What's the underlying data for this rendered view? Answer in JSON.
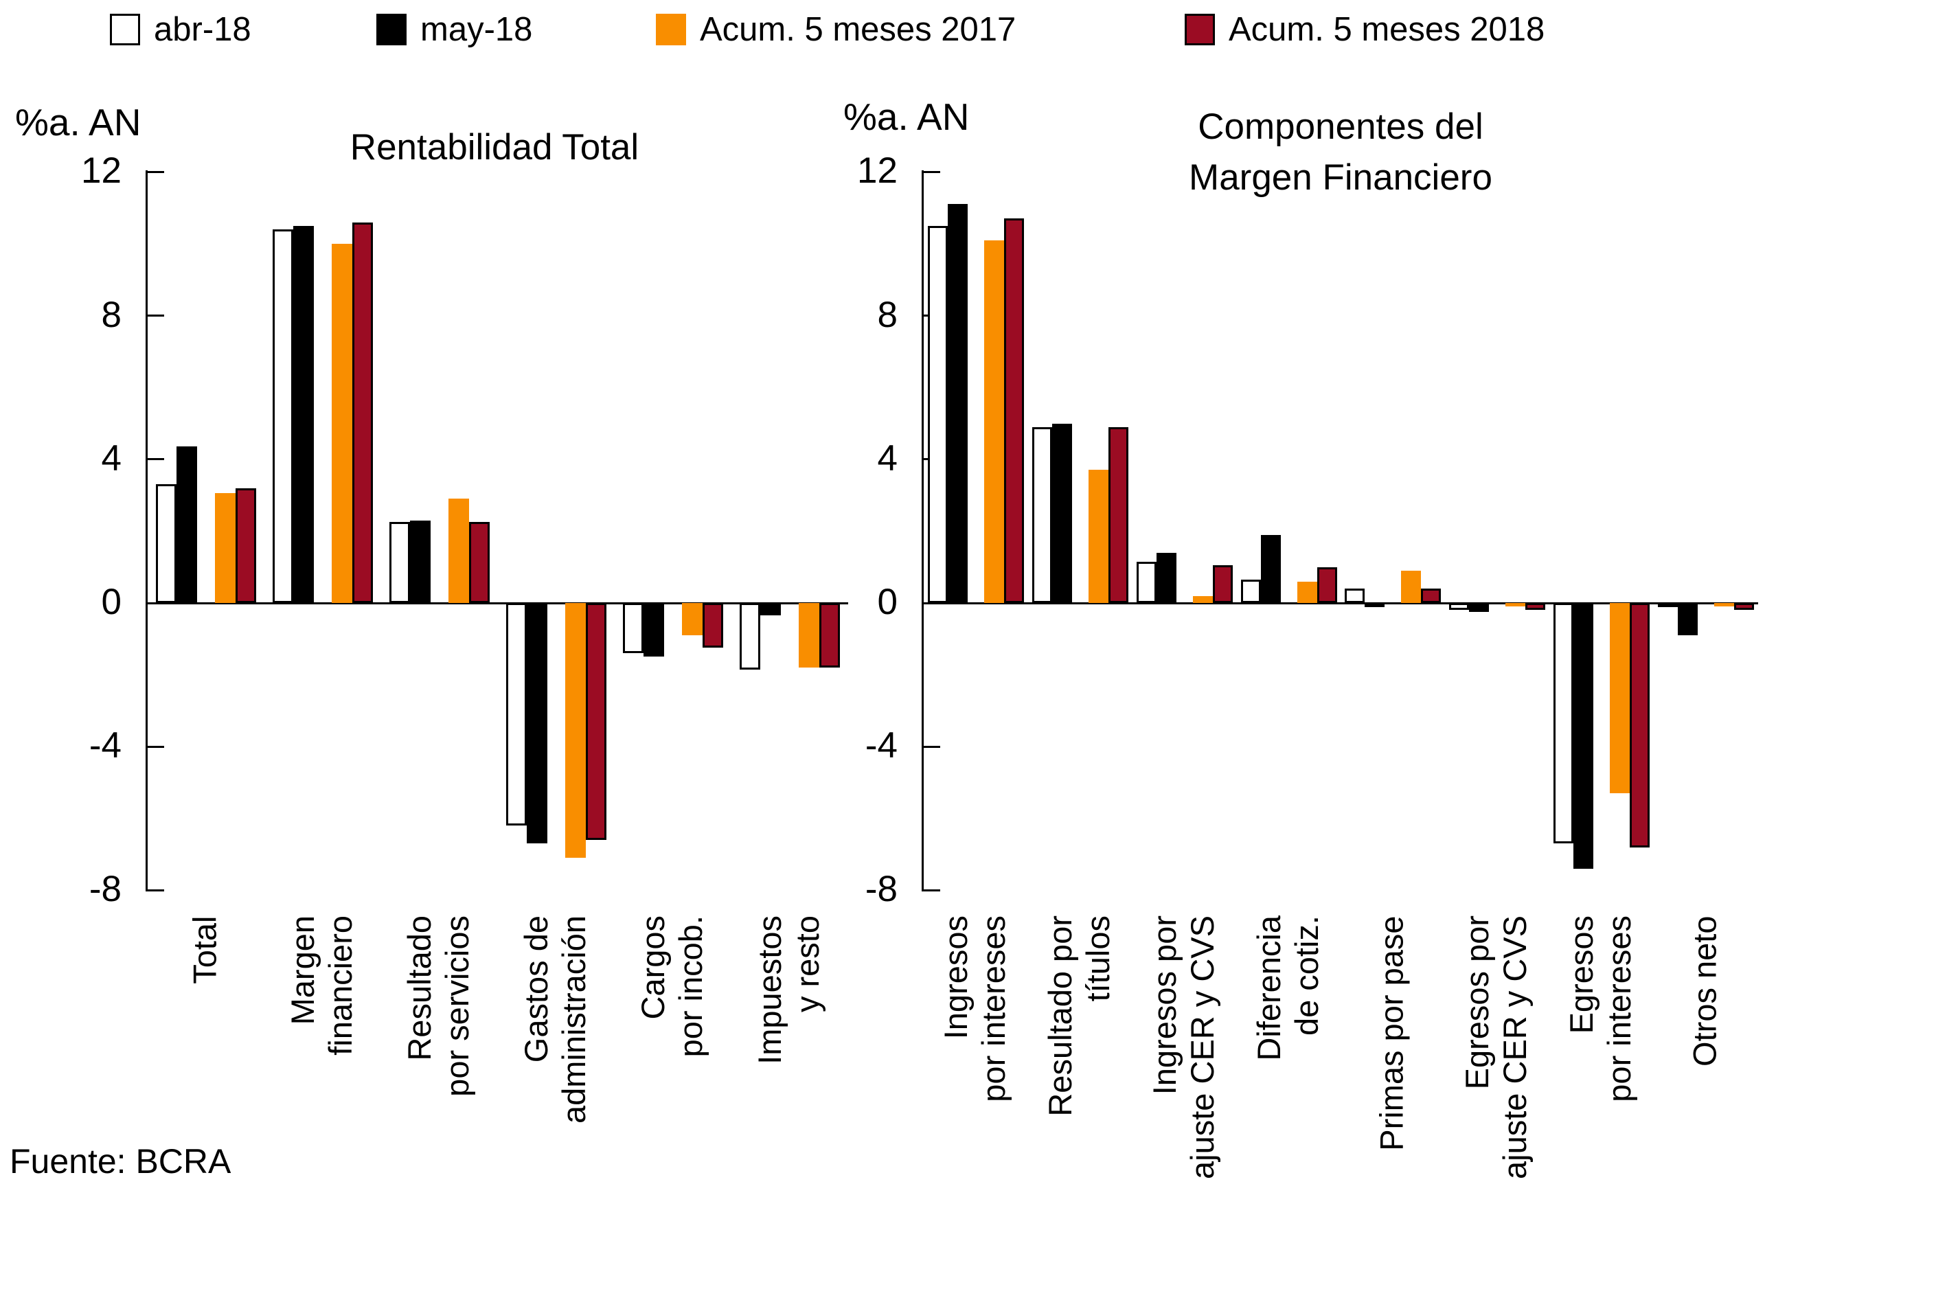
{
  "source_label": "Fuente: BCRA",
  "legend": {
    "items": [
      {
        "label": "abr-18",
        "fill": "#FFFFFF",
        "border": "#000000"
      },
      {
        "label": "may-18",
        "fill": "#000000",
        "border": "#000000"
      },
      {
        "label": "Acum. 5 meses 2017",
        "fill": "#F98E00",
        "border": "none"
      },
      {
        "label": "Acum. 5 meses 2018",
        "fill": "#9B0C23",
        "border": "#000000"
      }
    ]
  },
  "chart_data": [
    {
      "type": "bar",
      "title": "Rentabilidad Total",
      "title_lines": [
        "Rentabilidad Total"
      ],
      "axis_unit_label": "%a. AN",
      "ylabel": "%a. AN",
      "xlabel": "",
      "ylim": [
        -8,
        12
      ],
      "yticks": [
        12,
        8,
        4,
        0,
        -4,
        -8
      ],
      "grid": false,
      "legend_position": "top",
      "categories": [
        "Total",
        "Margen financiero",
        "Resultado por servicios",
        "Gastos de administración",
        "Cargos por incob.",
        "Impuestos y resto"
      ],
      "category_label_lines": [
        [
          "Total"
        ],
        [
          "Margen",
          "financiero"
        ],
        [
          "Resultado",
          "por servicios"
        ],
        [
          "Gastos de",
          "administración"
        ],
        [
          "Cargos",
          "por incob."
        ],
        [
          "Impuestos",
          "y resto"
        ]
      ],
      "series": [
        {
          "name": "abr-18",
          "values": [
            3.3,
            10.4,
            2.25,
            -6.2,
            -1.4,
            -1.85
          ]
        },
        {
          "name": "may-18",
          "values": [
            4.35,
            10.5,
            2.3,
            -6.7,
            -1.5,
            -0.35
          ]
        },
        {
          "name": "Acum. 5 meses 2017",
          "values": [
            3.05,
            10.0,
            2.9,
            -7.1,
            -0.9,
            -1.8
          ]
        },
        {
          "name": "Acum. 5 meses 2018",
          "values": [
            3.2,
            10.6,
            2.25,
            -6.6,
            -1.25,
            -1.8
          ]
        }
      ]
    },
    {
      "type": "bar",
      "title": "Componentes del Margen Financiero",
      "title_lines": [
        "Componentes del",
        "Margen Financiero"
      ],
      "axis_unit_label": "%a. AN",
      "ylabel": "%a. AN",
      "xlabel": "",
      "ylim": [
        -8,
        12
      ],
      "yticks": [
        12,
        8,
        4,
        0,
        -4,
        -8
      ],
      "grid": false,
      "legend_position": "top",
      "categories": [
        "Ingresos por intereses",
        "Resultado por títulos",
        "Ingresos por ajuste CER y CVS",
        "Diferencia de cotiz.",
        "Primas por pase",
        "Egresos por ajuste CER y CVS",
        "Egresos por intereses",
        "Otros neto"
      ],
      "category_label_lines": [
        [
          "Ingresos",
          "por intereses"
        ],
        [
          "Resultado por",
          "títulos"
        ],
        [
          "Ingresos por",
          "ajuste CER y CVS"
        ],
        [
          "Diferencia",
          "de cotiz."
        ],
        [
          "Primas por pase"
        ],
        [
          "Egresos por",
          "ajuste CER y CVS"
        ],
        [
          "Egresos",
          "por intereses"
        ],
        [
          "Otros neto"
        ]
      ],
      "series": [
        {
          "name": "abr-18",
          "values": [
            10.5,
            4.9,
            1.15,
            0.65,
            0.4,
            -0.2,
            -6.7,
            -0.1
          ]
        },
        {
          "name": "may-18",
          "values": [
            11.1,
            5.0,
            1.4,
            1.9,
            -0.1,
            -0.25,
            -7.4,
            -0.9
          ]
        },
        {
          "name": "Acum. 5 meses 2017",
          "values": [
            10.1,
            3.7,
            0.2,
            0.6,
            0.9,
            -0.1,
            -5.3,
            -0.1
          ]
        },
        {
          "name": "Acum. 5 meses 2018",
          "values": [
            10.7,
            4.9,
            1.05,
            1.0,
            0.4,
            -0.2,
            -6.8,
            -0.2
          ]
        }
      ]
    }
  ]
}
